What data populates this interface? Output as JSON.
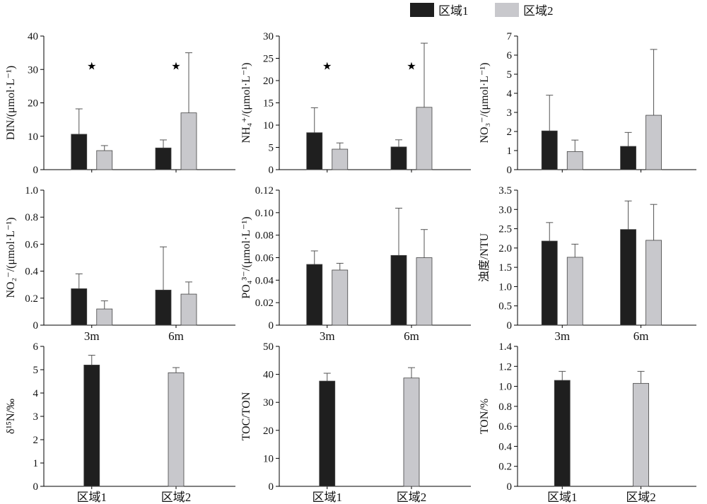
{
  "legend": {
    "entries": [
      {
        "label": "区域1",
        "color": "#1f1f1f"
      },
      {
        "label": "区域2",
        "color": "#c8c8cc"
      }
    ]
  },
  "chart_data": [
    {
      "type": "bar",
      "ylabel": "DIN/(μmol·L⁻¹)",
      "categories": [
        "3m",
        "6m"
      ],
      "ylim": [
        0,
        40
      ],
      "yticks": [
        "0",
        "10",
        "20",
        "30",
        "40"
      ],
      "series": [
        {
          "name": "区域1",
          "values": [
            10.6,
            6.5
          ],
          "errors": [
            7.6,
            2.4
          ]
        },
        {
          "name": "区域2",
          "values": [
            5.7,
            17.0
          ],
          "errors": [
            1.5,
            18.0
          ]
        }
      ],
      "annotations": [
        "★",
        "★"
      ],
      "show_xticklabels": false
    },
    {
      "type": "bar",
      "ylabel": "NH₄⁺/(μmol·L⁻¹)",
      "categories": [
        "3m",
        "6m"
      ],
      "ylim": [
        0,
        30
      ],
      "yticks": [
        "0",
        "5",
        "10",
        "15",
        "20",
        "25",
        "30"
      ],
      "series": [
        {
          "name": "区域1",
          "values": [
            8.3,
            5.1
          ],
          "errors": [
            5.6,
            1.6
          ]
        },
        {
          "name": "区域2",
          "values": [
            4.6,
            14.0
          ],
          "errors": [
            1.4,
            14.4
          ]
        }
      ],
      "annotations": [
        "★",
        "★"
      ],
      "show_xticklabels": false
    },
    {
      "type": "bar",
      "ylabel": "NO₃⁻/(μmol·L⁻¹)",
      "categories": [
        "3m",
        "6m"
      ],
      "ylim": [
        0,
        7
      ],
      "yticks": [
        "0",
        "1",
        "2",
        "3",
        "4",
        "5",
        "6",
        "7"
      ],
      "series": [
        {
          "name": "区域1",
          "values": [
            2.03,
            1.22
          ],
          "errors": [
            1.87,
            0.73
          ]
        },
        {
          "name": "区域2",
          "values": [
            0.95,
            2.85
          ],
          "errors": [
            0.6,
            3.45
          ]
        }
      ],
      "annotations": [],
      "show_xticklabels": false
    },
    {
      "type": "bar",
      "ylabel": "NO₂⁻/(μmol·L⁻¹)",
      "categories": [
        "3m",
        "6m"
      ],
      "ylim": [
        0,
        1.0
      ],
      "yticks": [
        "0",
        "0.2",
        "0.4",
        "0.6",
        "0.8",
        "1.0"
      ],
      "series": [
        {
          "name": "区域1",
          "values": [
            0.27,
            0.26
          ],
          "errors": [
            0.11,
            0.32
          ]
        },
        {
          "name": "区域2",
          "values": [
            0.12,
            0.23
          ],
          "errors": [
            0.06,
            0.09
          ]
        }
      ],
      "annotations": [],
      "show_xticklabels": true
    },
    {
      "type": "bar",
      "ylabel": "PO₄³⁻/(μmol·L⁻¹)",
      "categories": [
        "3m",
        "6m"
      ],
      "ylim": [
        0,
        0.12
      ],
      "yticks": [
        "0",
        "0.02",
        "0.04",
        "0.06",
        "0.08",
        "0.10",
        "0.12"
      ],
      "series": [
        {
          "name": "区域1",
          "values": [
            0.054,
            0.062
          ],
          "errors": [
            0.012,
            0.042
          ]
        },
        {
          "name": "区域2",
          "values": [
            0.049,
            0.06
          ],
          "errors": [
            0.006,
            0.025
          ]
        }
      ],
      "annotations": [],
      "show_xticklabels": true
    },
    {
      "type": "bar",
      "ylabel": "浊度/NTU",
      "categories": [
        "3m",
        "6m"
      ],
      "ylim": [
        0,
        3.5
      ],
      "yticks": [
        "0",
        "0.5",
        "1.0",
        "1.5",
        "2.0",
        "2.5",
        "3.0",
        "3.5"
      ],
      "series": [
        {
          "name": "区域1",
          "values": [
            2.18,
            2.48
          ],
          "errors": [
            0.48,
            0.74
          ]
        },
        {
          "name": "区域2",
          "values": [
            1.76,
            2.2
          ],
          "errors": [
            0.34,
            0.93
          ]
        }
      ],
      "annotations": [],
      "show_xticklabels": true
    },
    {
      "type": "bar",
      "ylabel": "δ¹⁵N/‰",
      "categories": [
        "区域1",
        "区域2"
      ],
      "ylim": [
        0,
        6
      ],
      "yticks": [
        "0",
        "1",
        "2",
        "3",
        "4",
        "5",
        "6"
      ],
      "series": [
        {
          "name": "区域1",
          "values": [
            5.2,
            null
          ],
          "errors": [
            0.42,
            null
          ]
        },
        {
          "name": "区域2",
          "values": [
            null,
            4.87
          ],
          "errors": [
            null,
            0.22
          ]
        }
      ],
      "annotations": [],
      "show_xticklabels": true
    },
    {
      "type": "bar",
      "ylabel": "TOC/TON",
      "categories": [
        "区域1",
        "区域2"
      ],
      "ylim": [
        0,
        50
      ],
      "yticks": [
        "0",
        "10",
        "20",
        "30",
        "40",
        "50"
      ],
      "series": [
        {
          "name": "区域1",
          "values": [
            37.6,
            null
          ],
          "errors": [
            2.8,
            null
          ]
        },
        {
          "name": "区域2",
          "values": [
            null,
            38.7
          ],
          "errors": [
            null,
            3.7
          ]
        }
      ],
      "annotations": [],
      "show_xticklabels": true
    },
    {
      "type": "bar",
      "ylabel": "TON/%",
      "categories": [
        "区域1",
        "区域2"
      ],
      "ylim": [
        0,
        1.4
      ],
      "yticks": [
        "0",
        "0.2",
        "0.4",
        "0.6",
        "0.8",
        "1.0",
        "1.2",
        "1.4"
      ],
      "series": [
        {
          "name": "区域1",
          "values": [
            1.06,
            null
          ],
          "errors": [
            0.09,
            null
          ]
        },
        {
          "name": "区域2",
          "values": [
            null,
            1.03
          ],
          "errors": [
            null,
            0.12
          ]
        }
      ],
      "annotations": [],
      "show_xticklabels": true
    }
  ]
}
